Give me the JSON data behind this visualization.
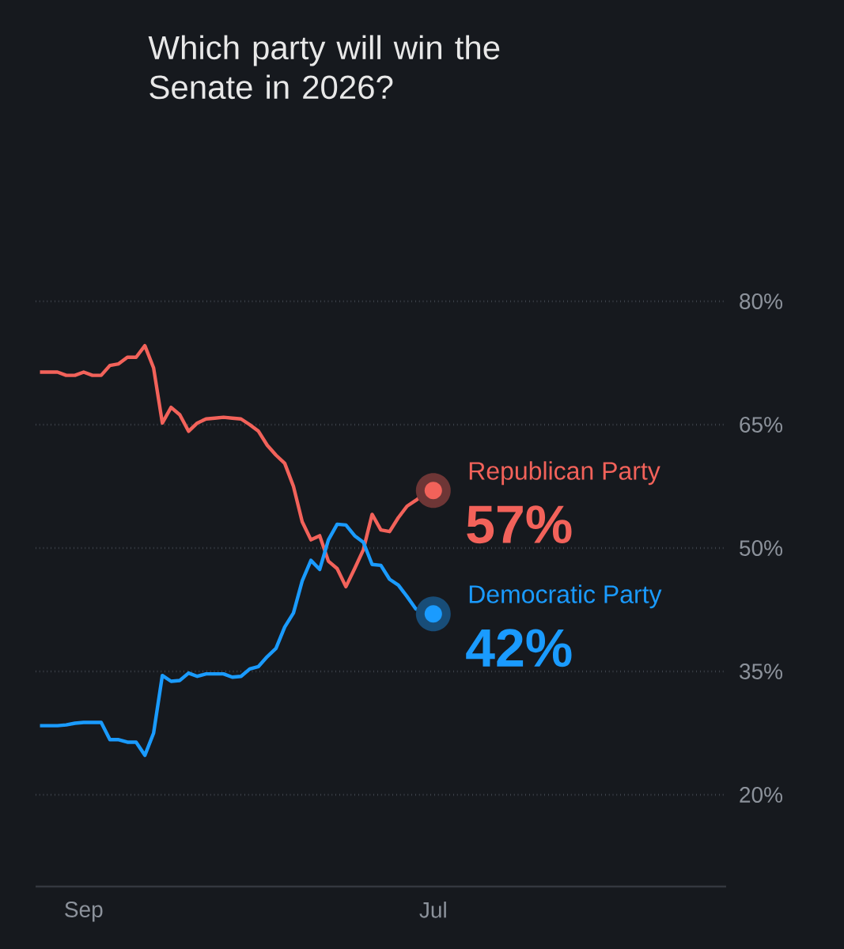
{
  "chart_data": {
    "type": "line",
    "title": "Which party will win the Senate in 2026?",
    "categories": [
      null,
      null,
      null,
      null,
      null,
      "Sep",
      null,
      null,
      null,
      null,
      null,
      null,
      null,
      null,
      null,
      null,
      null,
      null,
      null,
      null,
      null,
      null,
      null,
      null,
      null,
      null,
      null,
      null,
      null,
      null,
      null,
      null,
      null,
      null,
      null,
      null,
      null,
      null,
      null,
      null,
      null,
      null,
      null,
      null,
      null,
      "Jul",
      null,
      null,
      null,
      null,
      null,
      null,
      null,
      null,
      null,
      null,
      null,
      null,
      null,
      null,
      null,
      null,
      null,
      null,
      null,
      null,
      null,
      null,
      null,
      null,
      null,
      null,
      null,
      null,
      null,
      null,
      null,
      null,
      null
    ],
    "ylim": [
      20,
      80
    ],
    "yticks": [
      {
        "value": 20,
        "label": "20%"
      },
      {
        "value": 35,
        "label": "35%"
      },
      {
        "value": 50,
        "label": "50%"
      },
      {
        "value": 65,
        "label": "65%"
      },
      {
        "value": 80,
        "label": "80%"
      }
    ],
    "grid": "y",
    "legend": false,
    "series": [
      {
        "name": "Republican Party",
        "color": "#f2625a",
        "values": [
          71.4,
          71.4,
          71.4,
          71.0,
          71.0,
          71.4,
          71.0,
          71.0,
          72.2,
          72.4,
          73.2,
          73.2,
          74.6,
          71.9,
          65.2,
          67.1,
          66.2,
          64.2,
          65.2,
          65.7,
          65.8,
          65.9,
          65.8,
          65.7,
          65.0,
          64.2,
          62.5,
          61.3,
          60.3,
          57.5,
          53.2,
          51.0,
          51.5,
          48.4,
          47.5,
          45.3,
          47.5,
          49.8,
          54.1,
          52.2,
          52.0,
          53.7,
          55.1,
          55.8,
          56.6,
          57,
          null,
          null,
          null,
          null,
          null,
          null,
          null,
          null,
          null,
          null,
          null,
          null,
          null,
          null,
          null,
          null,
          null,
          null,
          null,
          null,
          null,
          null,
          null,
          null,
          null,
          null,
          null,
          null,
          null,
          null,
          null,
          null,
          null
        ],
        "value_labels": [
          null,
          null,
          null,
          null,
          null,
          null,
          null,
          null,
          null,
          null,
          null,
          null,
          null,
          null,
          null,
          null,
          null,
          null,
          null,
          null,
          null,
          null,
          null,
          null,
          null,
          null,
          null,
          null,
          null,
          null,
          null,
          null,
          null,
          null,
          null,
          null,
          null,
          null,
          null,
          null,
          null,
          null,
          null,
          null,
          null,
          "57%",
          null,
          null,
          null,
          null,
          null,
          null,
          null,
          null,
          null,
          null,
          null,
          null,
          null,
          null,
          null,
          null,
          null,
          null,
          null,
          null,
          null,
          null,
          null,
          null,
          null,
          null,
          null,
          null,
          null,
          null,
          null,
          null,
          null
        ]
      },
      {
        "name": "Democratic Party",
        "color": "#1a9bff",
        "values": [
          28.4,
          28.4,
          28.4,
          28.5,
          28.7,
          28.8,
          28.8,
          28.8,
          26.7,
          26.7,
          26.4,
          26.4,
          24.8,
          27.5,
          34.5,
          33.8,
          33.9,
          34.8,
          34.4,
          34.7,
          34.7,
          34.7,
          34.3,
          34.4,
          35.3,
          35.6,
          36.8,
          37.8,
          40.4,
          42.1,
          46.0,
          48.5,
          47.4,
          51.0,
          52.9,
          52.8,
          51.5,
          50.7,
          48.0,
          47.9,
          46.2,
          45.5,
          44.1,
          42.6,
          42.4,
          42,
          null,
          null,
          null,
          null,
          null,
          null,
          null,
          null,
          null,
          null,
          null,
          null,
          null,
          null,
          null,
          null,
          null,
          null,
          null,
          null,
          null,
          null,
          null,
          null,
          null,
          null,
          null,
          null,
          null,
          null,
          null,
          null,
          null
        ],
        "value_labels": [
          null,
          null,
          null,
          null,
          null,
          null,
          null,
          null,
          null,
          null,
          null,
          null,
          null,
          null,
          null,
          null,
          null,
          null,
          null,
          null,
          null,
          null,
          null,
          null,
          null,
          null,
          null,
          null,
          null,
          null,
          null,
          null,
          null,
          null,
          null,
          null,
          null,
          null,
          null,
          null,
          null,
          null,
          null,
          null,
          null,
          "42%",
          null,
          null,
          null,
          null,
          null,
          null,
          null,
          null,
          null,
          null,
          null,
          null,
          null,
          null,
          null,
          null,
          null,
          null,
          null,
          null,
          null,
          null,
          null,
          null,
          null,
          null,
          null,
          null,
          null,
          null,
          null,
          null,
          null
        ]
      }
    ]
  }
}
